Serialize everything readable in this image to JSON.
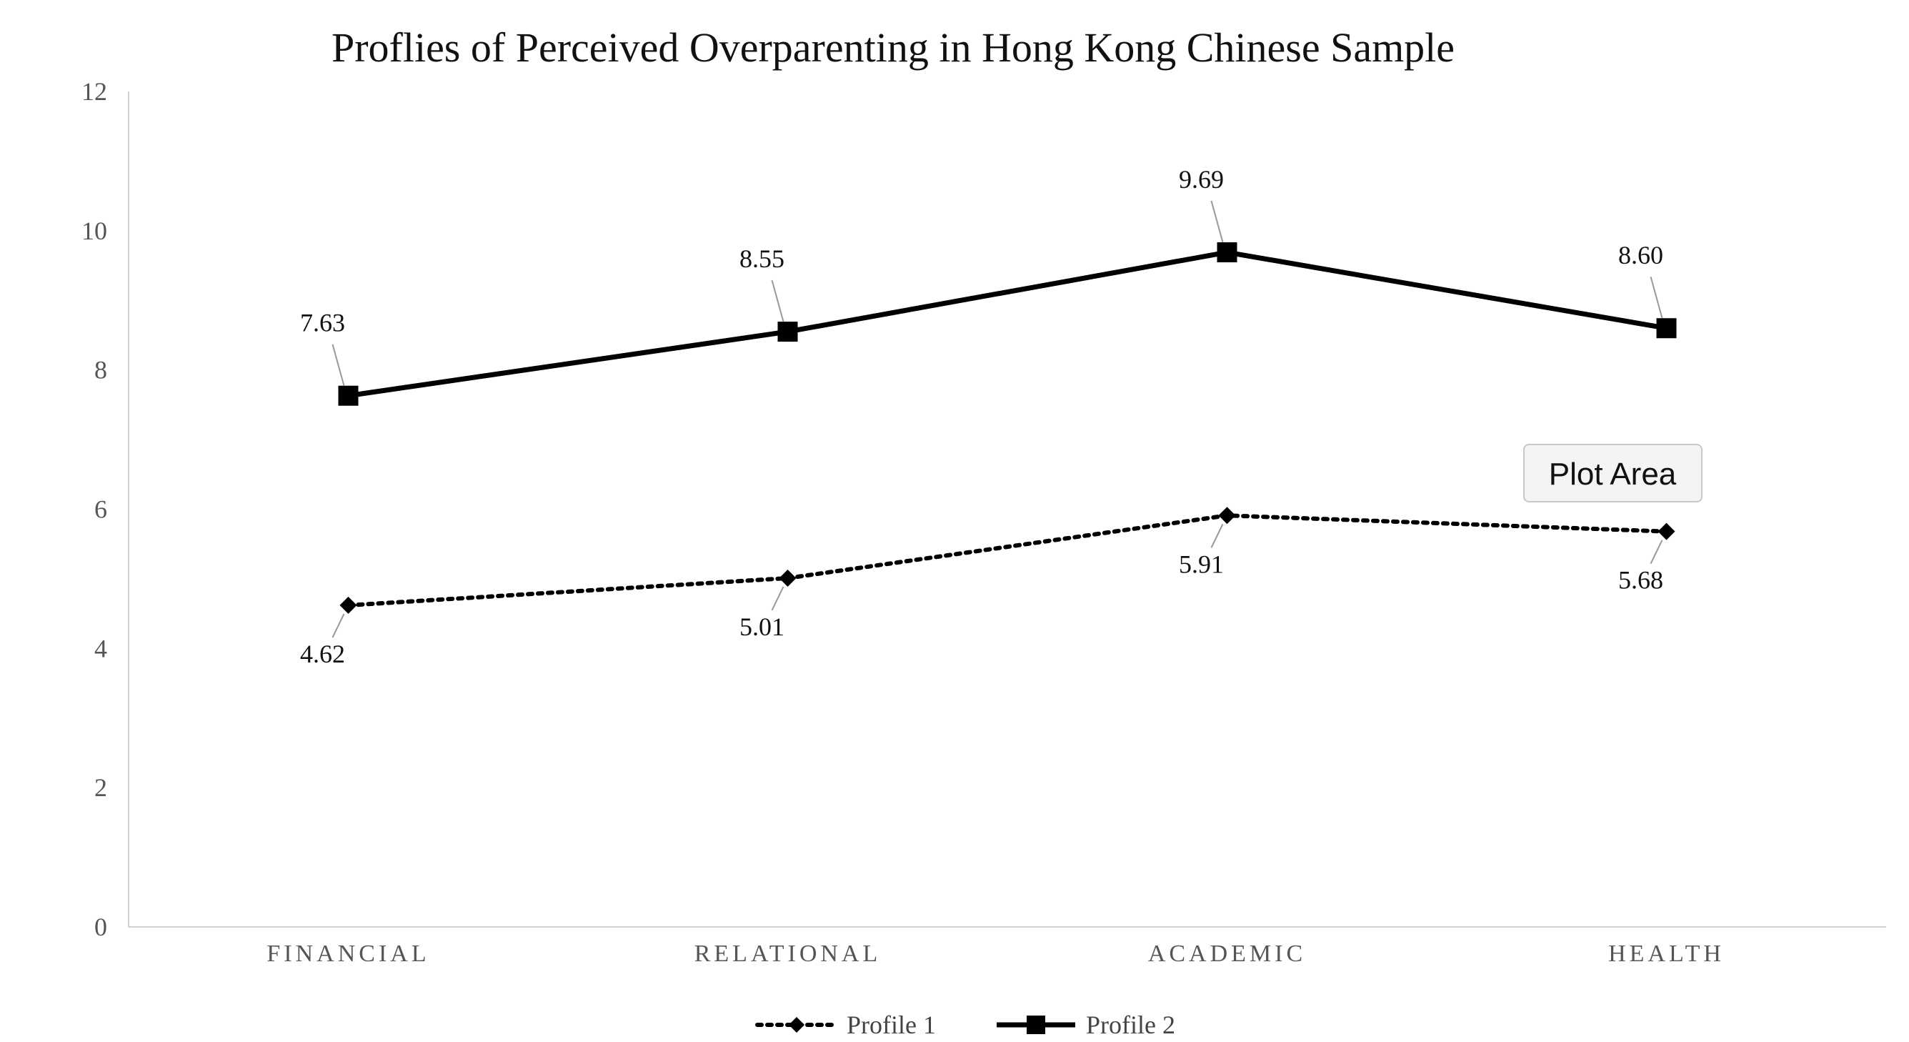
{
  "chart_data": {
    "type": "line",
    "title": "Proflies of Perceived Overparenting in Hong Kong Chinese Sample",
    "xlabel": "",
    "ylabel": "",
    "categories": [
      "FINANCIAL",
      "RELATIONAL",
      "ACADEMIC",
      "HEALTH"
    ],
    "ylim": [
      0,
      12
    ],
    "yticks": [
      "0",
      "2",
      "4",
      "6",
      "8",
      "10",
      "12"
    ],
    "series": [
      {
        "name": "Profile 1",
        "values": [
          4.62,
          5.01,
          5.91,
          5.68
        ],
        "labels": [
          "4.62",
          "5.01",
          "5.91",
          "5.68"
        ],
        "line_style": "dotted",
        "marker": "diamond",
        "color": "#000000"
      },
      {
        "name": "Profile 2",
        "values": [
          7.63,
          8.55,
          9.69,
          8.6
        ],
        "labels": [
          "7.63",
          "8.55",
          "9.69",
          "8.60"
        ],
        "line_style": "solid",
        "marker": "square",
        "color": "#000000"
      }
    ],
    "grid": false,
    "legend_position": "bottom"
  },
  "tooltip": {
    "text": "Plot Area"
  }
}
